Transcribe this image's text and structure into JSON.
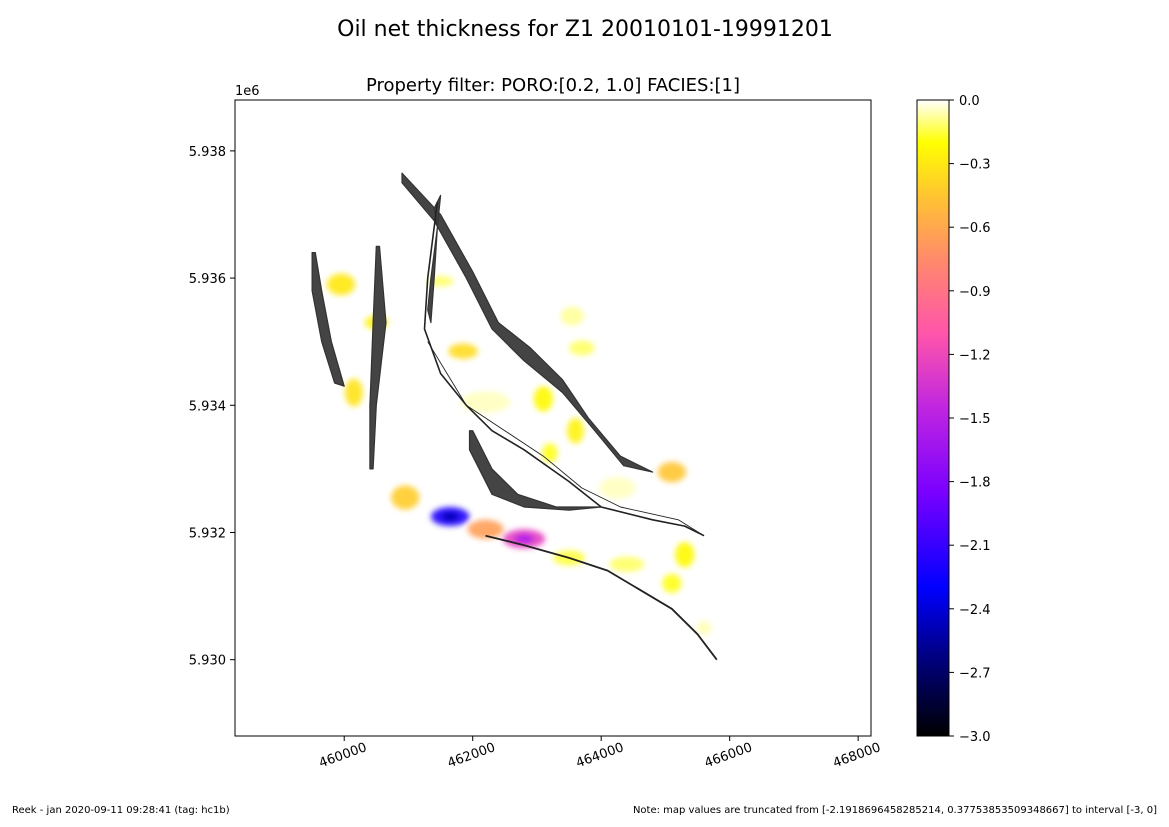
{
  "chart_data": {
    "type": "heatmap",
    "title": "Oil net thickness for Z1 20010101-19991201",
    "subtitle": "Property filter:   PORO:[0.2, 1.0]  FACIES:[1]",
    "xlabel": "",
    "ylabel": "",
    "xlim": [
      458300,
      468200
    ],
    "ylim": [
      5928800,
      5938800
    ],
    "x_ticks": [
      460000,
      462000,
      464000,
      466000,
      468000
    ],
    "x_tick_labels": [
      "460000",
      "462000",
      "464000",
      "466000",
      "468000"
    ],
    "y_ticks": [
      5930000,
      5932000,
      5934000,
      5936000,
      5938000
    ],
    "y_tick_labels": [
      "5.930",
      "5.932",
      "5.934",
      "5.936",
      "5.938"
    ],
    "y_offset_label": "1e6",
    "grid": false,
    "colorbar": {
      "range": [
        -3.0,
        0.0
      ],
      "ticks": [
        0.0,
        -0.3,
        -0.6,
        -0.9,
        -1.2,
        -1.5,
        -1.8,
        -2.1,
        -2.4,
        -2.7,
        -3.0
      ],
      "tick_labels": [
        "0.0",
        "−0.3",
        "−0.6",
        "−0.9",
        "−1.2",
        "−1.5",
        "−1.8",
        "−2.1",
        "−2.4",
        "−2.7",
        "−3.0"
      ],
      "colormap": "gnuplot2",
      "stops": [
        {
          "v": -3.0,
          "color": "#000000"
        },
        {
          "v": -2.6,
          "color": "#00008a"
        },
        {
          "v": -2.3,
          "color": "#0000ff"
        },
        {
          "v": -1.85,
          "color": "#7a00ff"
        },
        {
          "v": -1.45,
          "color": "#c026e0"
        },
        {
          "v": -1.1,
          "color": "#ff55aa"
        },
        {
          "v": -0.75,
          "color": "#ff8a6a"
        },
        {
          "v": -0.45,
          "color": "#ffc530"
        },
        {
          "v": -0.2,
          "color": "#ffff00"
        },
        {
          "v": 0.0,
          "color": "#ffffff"
        }
      ]
    },
    "heat_regions": [
      {
        "x": 459950,
        "y": 5935900,
        "sx": 220,
        "sy": 170,
        "value": -0.3
      },
      {
        "x": 460500,
        "y": 5935300,
        "sx": 180,
        "sy": 110,
        "value": -0.25
      },
      {
        "x": 460150,
        "y": 5934200,
        "sx": 140,
        "sy": 220,
        "value": -0.32
      },
      {
        "x": 461500,
        "y": 5935950,
        "sx": 200,
        "sy": 80,
        "value": -0.12
      },
      {
        "x": 461850,
        "y": 5934850,
        "sx": 230,
        "sy": 120,
        "value": -0.35
      },
      {
        "x": 463550,
        "y": 5935400,
        "sx": 180,
        "sy": 150,
        "value": -0.08
      },
      {
        "x": 463700,
        "y": 5934900,
        "sx": 200,
        "sy": 120,
        "value": -0.12
      },
      {
        "x": 463100,
        "y": 5934100,
        "sx": 150,
        "sy": 200,
        "value": -0.22
      },
      {
        "x": 463600,
        "y": 5933600,
        "sx": 130,
        "sy": 200,
        "value": -0.25
      },
      {
        "x": 463200,
        "y": 5933250,
        "sx": 120,
        "sy": 150,
        "value": -0.18
      },
      {
        "x": 465100,
        "y": 5932950,
        "sx": 220,
        "sy": 160,
        "value": -0.45
      },
      {
        "x": 465300,
        "y": 5931650,
        "sx": 150,
        "sy": 200,
        "value": -0.22
      },
      {
        "x": 465100,
        "y": 5931200,
        "sx": 150,
        "sy": 150,
        "value": -0.18
      },
      {
        "x": 460950,
        "y": 5932550,
        "sx": 220,
        "sy": 190,
        "value": -0.42
      },
      {
        "x": 461650,
        "y": 5932250,
        "sx": 300,
        "sy": 150,
        "value": -2.19
      },
      {
        "x": 462200,
        "y": 5932050,
        "sx": 280,
        "sy": 150,
        "value": -0.65
      },
      {
        "x": 462800,
        "y": 5931900,
        "sx": 330,
        "sy": 150,
        "value": -1.25
      },
      {
        "x": 463500,
        "y": 5931600,
        "sx": 250,
        "sy": 120,
        "value": -0.15
      },
      {
        "x": 464400,
        "y": 5931500,
        "sx": 270,
        "sy": 120,
        "value": -0.12
      },
      {
        "x": 464250,
        "y": 5932700,
        "sx": 280,
        "sy": 170,
        "value": -0.05
      },
      {
        "x": 462200,
        "y": 5934050,
        "sx": 380,
        "sy": 170,
        "value": -0.05
      },
      {
        "x": 465600,
        "y": 5930500,
        "sx": 110,
        "sy": 110,
        "value": -0.06
      }
    ],
    "faults": [
      {
        "type": "polygon",
        "points": [
          [
            459550,
            5936400
          ],
          [
            459650,
            5935800
          ],
          [
            459800,
            5935000
          ],
          [
            460000,
            5934300
          ],
          [
            459850,
            5934350
          ],
          [
            459650,
            5935000
          ],
          [
            459500,
            5935800
          ],
          [
            459500,
            5936400
          ]
        ]
      },
      {
        "type": "polygon",
        "points": [
          [
            460550,
            5936500
          ],
          [
            460650,
            5935300
          ],
          [
            460500,
            5934000
          ],
          [
            460450,
            5933000
          ],
          [
            460400,
            5933000
          ],
          [
            460400,
            5934000
          ],
          [
            460450,
            5935300
          ],
          [
            460500,
            5936500
          ]
        ]
      },
      {
        "type": "polygon",
        "points": [
          [
            460900,
            5937650
          ],
          [
            461500,
            5937000
          ],
          [
            462000,
            5936100
          ],
          [
            462400,
            5935300
          ],
          [
            462900,
            5934900
          ],
          [
            463400,
            5934400
          ],
          [
            463800,
            5933800
          ],
          [
            464300,
            5933200
          ],
          [
            464800,
            5932950
          ],
          [
            464350,
            5933050
          ],
          [
            463900,
            5933600
          ],
          [
            463400,
            5934200
          ],
          [
            462800,
            5934700
          ],
          [
            462300,
            5935200
          ],
          [
            461900,
            5936000
          ],
          [
            461400,
            5936900
          ],
          [
            460900,
            5937500
          ]
        ]
      },
      {
        "type": "polygon",
        "points": [
          [
            462000,
            5933600
          ],
          [
            462300,
            5933000
          ],
          [
            462700,
            5932600
          ],
          [
            463300,
            5932400
          ],
          [
            464000,
            5932400
          ],
          [
            463500,
            5932350
          ],
          [
            462800,
            5932400
          ],
          [
            462300,
            5932600
          ],
          [
            461950,
            5933300
          ],
          [
            461950,
            5933600
          ]
        ]
      },
      {
        "type": "polygon",
        "points": [
          [
            461500,
            5937300
          ],
          [
            461450,
            5936800
          ],
          [
            461350,
            5936000
          ],
          [
            461300,
            5935500
          ],
          [
            461350,
            5935300
          ],
          [
            461400,
            5936000
          ],
          [
            461450,
            5936800
          ],
          [
            461400,
            5937100
          ]
        ]
      },
      {
        "type": "line",
        "width": 1.6,
        "points": [
          [
            461450,
            5937200
          ],
          [
            461300,
            5936000
          ],
          [
            461250,
            5935200
          ],
          [
            461500,
            5934500
          ],
          [
            461900,
            5934000
          ],
          [
            462300,
            5933600
          ],
          [
            462800,
            5933300
          ],
          [
            463500,
            5932800
          ],
          [
            464000,
            5932400
          ],
          [
            464800,
            5932200
          ],
          [
            465300,
            5932100
          ],
          [
            465600,
            5931950
          ]
        ]
      },
      {
        "type": "line",
        "width": 0.9,
        "points": [
          [
            461300,
            5935000
          ],
          [
            461900,
            5934000
          ],
          [
            462500,
            5933600
          ],
          [
            463100,
            5933200
          ],
          [
            463700,
            5932700
          ],
          [
            464300,
            5932400
          ],
          [
            465200,
            5932200
          ],
          [
            465600,
            5931950
          ]
        ]
      },
      {
        "type": "line",
        "width": 1.8,
        "points": [
          [
            462200,
            5931950
          ],
          [
            462800,
            5931800
          ],
          [
            463500,
            5931600
          ],
          [
            464100,
            5931400
          ],
          [
            464600,
            5931100
          ],
          [
            465100,
            5930800
          ],
          [
            465500,
            5930400
          ],
          [
            465800,
            5930000
          ]
        ]
      }
    ]
  },
  "footer": {
    "left": "Reek -  jan 2020-09-11 09:28:41 (tag: hc1b)",
    "right": "Note: map values are truncated from [-2.1918696458285214, 0.37753853509348667] to interval [-3, 0]"
  }
}
